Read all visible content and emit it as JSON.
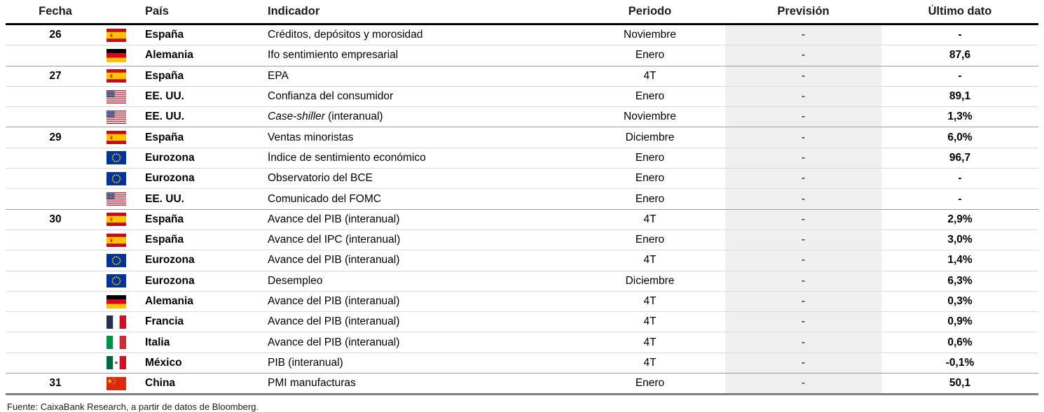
{
  "table": {
    "headers": [
      "Fecha",
      "País",
      "Indicador",
      "Periodo",
      "Previsión",
      "Último dato"
    ],
    "rows": [
      {
        "date": "26",
        "flag": "spain",
        "country": "España",
        "indicator": "Créditos, depósitos y morosidad",
        "period": "Noviembre",
        "forecast": "-",
        "last": "-",
        "group_start": true
      },
      {
        "date": "",
        "flag": "germany",
        "country": "Alemania",
        "indicator": "Ifo sentimiento empresarial",
        "period": "Enero",
        "forecast": "-",
        "last": "87,6",
        "group_start": false
      },
      {
        "date": "27",
        "flag": "spain",
        "country": "España",
        "indicator": "EPA",
        "period": "4T",
        "forecast": "-",
        "last": "-",
        "group_start": true
      },
      {
        "date": "",
        "flag": "usa",
        "country": "EE. UU.",
        "indicator": "Confianza del consumidor",
        "period": "Enero",
        "forecast": "-",
        "last": "89,1",
        "group_start": false
      },
      {
        "date": "",
        "flag": "usa",
        "country": "EE. UU.",
        "indicator": "Case-shiller (interanual)",
        "indicator_italic_part": "Case-shiller",
        "period": "Noviembre",
        "forecast": "-",
        "last": "1,3%",
        "group_start": false
      },
      {
        "date": "29",
        "flag": "spain",
        "country": "España",
        "indicator": "Ventas minoristas",
        "period": "Diciembre",
        "forecast": "-",
        "last": "6,0%",
        "group_start": true
      },
      {
        "date": "",
        "flag": "eu",
        "country": "Eurozona",
        "indicator": "Índice de sentimiento económico",
        "period": "Enero",
        "forecast": "-",
        "last": "96,7",
        "group_start": false
      },
      {
        "date": "",
        "flag": "eu",
        "country": "Eurozona",
        "indicator": "Observatorio del BCE",
        "period": "Enero",
        "forecast": "-",
        "last": "-",
        "group_start": false
      },
      {
        "date": "",
        "flag": "usa",
        "country": "EE. UU.",
        "indicator": "Comunicado del FOMC",
        "period": "Enero",
        "forecast": "-",
        "last": "-",
        "group_start": false
      },
      {
        "date": "30",
        "flag": "spain",
        "country": "España",
        "indicator": "Avance del PIB (interanual)",
        "period": "4T",
        "forecast": "-",
        "last": "2,9%",
        "group_start": true
      },
      {
        "date": "",
        "flag": "spain",
        "country": "España",
        "indicator": "Avance del IPC (interanual)",
        "period": "Enero",
        "forecast": "-",
        "last": "3,0%",
        "group_start": false
      },
      {
        "date": "",
        "flag": "eu",
        "country": "Eurozona",
        "indicator": "Avance del PIB (interanual)",
        "period": "4T",
        "forecast": "-",
        "last": "1,4%",
        "group_start": false
      },
      {
        "date": "",
        "flag": "eu",
        "country": "Eurozona",
        "indicator": "Desempleo",
        "period": "Diciembre",
        "forecast": "-",
        "last": "6,3%",
        "group_start": false
      },
      {
        "date": "",
        "flag": "germany",
        "country": "Alemania",
        "indicator": "Avance del PIB (interanual)",
        "period": "4T",
        "forecast": "-",
        "last": "0,3%",
        "group_start": false
      },
      {
        "date": "",
        "flag": "france",
        "country": "Francia",
        "indicator": "Avance del PIB (interanual)",
        "period": "4T",
        "forecast": "-",
        "last": "0,9%",
        "group_start": false
      },
      {
        "date": "",
        "flag": "italy",
        "country": "Italia",
        "indicator": "Avance del PIB (interanual)",
        "period": "4T",
        "forecast": "-",
        "last": "0,6%",
        "group_start": false
      },
      {
        "date": "",
        "flag": "mexico",
        "country": "México",
        "indicator": "PIB (interanual)",
        "period": "4T",
        "forecast": "-",
        "last": "-0,1%",
        "group_start": false
      },
      {
        "date": "31",
        "flag": "china",
        "country": "China",
        "indicator": "PMI manufacturas",
        "period": "Enero",
        "forecast": "-",
        "last": "50,1",
        "group_start": true
      }
    ]
  },
  "footer": {
    "source": "Fuente: CaixaBank Research, a partir de datos de Bloomberg."
  },
  "colors": {
    "header_rule": "#000000",
    "bottom_rule": "#808080",
    "row_line": "#d9d9d9",
    "group_line": "#9e9e9e",
    "forecast_bg": "#efefef",
    "flag_spain_red": "#c60b1e",
    "flag_spain_yellow": "#ffc400",
    "flag_germany": [
      "#000000",
      "#e1001f",
      "#f6c500"
    ],
    "flag_usa": [
      "#b22234",
      "#ffffff",
      "#3c3b6e"
    ],
    "flag_eu": [
      "#003399",
      "#ffcc00"
    ],
    "flag_france": [
      "#253150",
      "#ffffff",
      "#ce1126"
    ],
    "flag_italy": [
      "#009246",
      "#ffffff",
      "#ce2b37"
    ],
    "flag_mexico": [
      "#006847",
      "#ffffff",
      "#ce1126"
    ],
    "flag_china": [
      "#de2910",
      "#ffde00"
    ]
  }
}
